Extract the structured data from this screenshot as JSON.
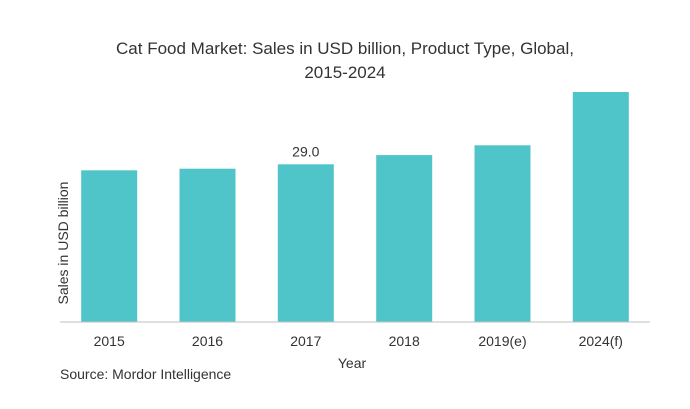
{
  "chart_data": {
    "type": "bar",
    "title_line1": "Cat Food Market: Sales in USD billion, Product Type, Global,",
    "title_line2": "2015-2024",
    "xlabel": "Year",
    "ylabel": "Sales in USD billion",
    "categories": [
      "2015",
      "2016",
      "2017",
      "2018",
      "2019(e)",
      "2024(f)"
    ],
    "values": [
      27.9,
      28.2,
      29.0,
      30.7,
      32.5,
      42.3
    ],
    "data_labels": [
      null,
      null,
      "29.0",
      null,
      null,
      null
    ],
    "ylim": [
      0,
      42.3
    ],
    "grid": false,
    "bar_color": "#4fc4c9",
    "source": "Source: Mordor Intelligence"
  }
}
